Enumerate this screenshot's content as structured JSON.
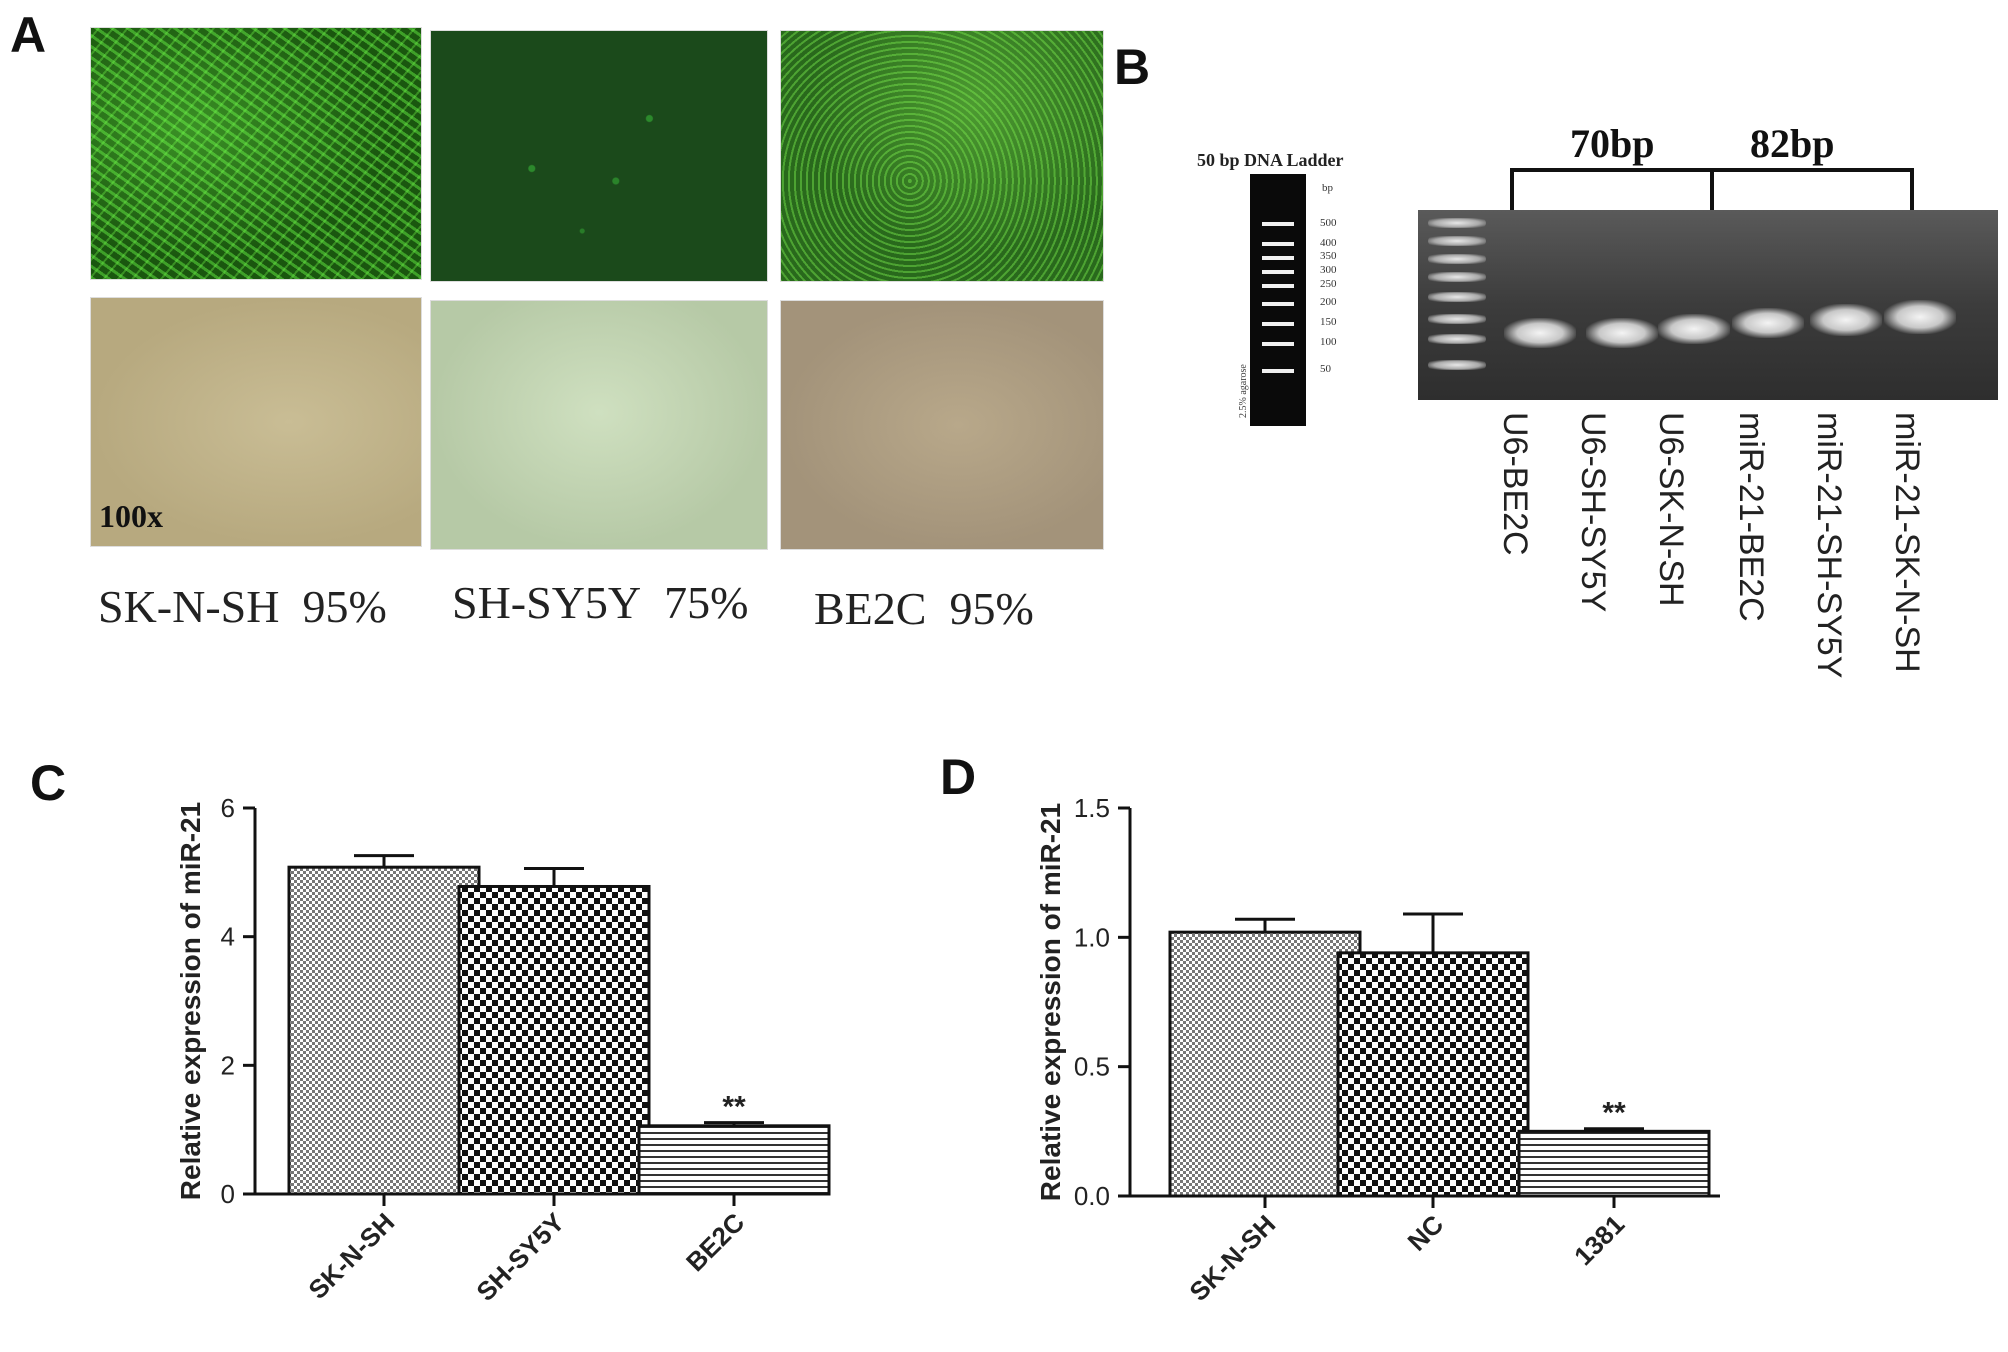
{
  "panels": {
    "A": {
      "letter": "A",
      "magnification": "100x",
      "cell_lines": [
        {
          "name": "SK-N-SH",
          "efficiency": "95%"
        },
        {
          "name": "SH-SY5Y",
          "efficiency": "75%"
        },
        {
          "name": "BE2C",
          "efficiency": "95%"
        }
      ]
    },
    "B": {
      "letter": "B",
      "ladder_title": "50 bp DNA Ladder",
      "ladder_unit": "bp",
      "ladder_marks": [
        "500",
        "400",
        "350",
        "300",
        "250",
        "200",
        "150",
        "100",
        "50"
      ],
      "ladder_note": "2.5% agarose",
      "size_labels": [
        "70bp",
        "82bp"
      ],
      "lanes": [
        "U6-BE2C",
        "U6-SH-SY5Y",
        "U6-SK-N-SH",
        "miR-21-BE2C",
        "miR-21-SH-SY5Y",
        "miR-21-SK-N-SH"
      ]
    },
    "C": {
      "letter": "C"
    },
    "D": {
      "letter": "D"
    }
  },
  "chart_data": [
    {
      "type": "bar",
      "panel": "C",
      "categories": [
        "SK-N-SH",
        "SH-SY5Y",
        "BE2C"
      ],
      "values": [
        5.08,
        4.78,
        1.06
      ],
      "errors": [
        0.18,
        0.28,
        0.05
      ],
      "annotations": [
        "",
        "",
        "**"
      ],
      "ylabel": "Relative expression of miR-21",
      "ylim": [
        0,
        6
      ],
      "yticks": [
        "0",
        "2",
        "4",
        "6"
      ],
      "ytick_values": [
        0,
        2,
        4,
        6
      ],
      "grid": false
    },
    {
      "type": "bar",
      "panel": "D",
      "categories": [
        "SK-N-SH",
        "NC",
        "1381"
      ],
      "values": [
        1.02,
        0.94,
        0.25
      ],
      "errors": [
        0.05,
        0.15,
        0.01
      ],
      "annotations": [
        "",
        "",
        "**"
      ],
      "ylabel": "Relative expression of miR-21",
      "ylim": [
        0,
        1.5
      ],
      "yticks": [
        "0.0",
        "0.5",
        "1.0",
        "1.5"
      ],
      "ytick_values": [
        0,
        0.5,
        1.0,
        1.5
      ],
      "grid": false
    }
  ]
}
